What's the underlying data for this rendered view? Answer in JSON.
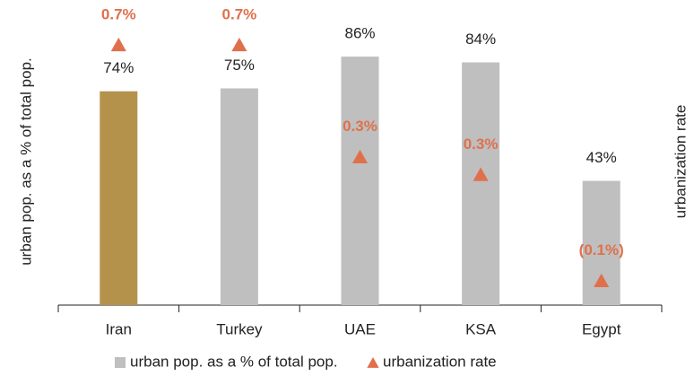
{
  "chart_data": {
    "type": "bar",
    "categories": [
      "Iran",
      "Turkey",
      "UAE",
      "KSA",
      "Egypt"
    ],
    "y_label": "urban pop. as a % of total pop.",
    "y2_label": "urbanization rate",
    "ylim": [
      0,
      100
    ],
    "y2lim": [
      -0.18,
      0.8
    ],
    "legend": "bottom",
    "series": [
      {
        "name": "urban pop. as a % of total pop.",
        "type": "bar",
        "color": "#bfbfbf",
        "colors": [
          "#b5924c",
          "#bfbfbf",
          "#bfbfbf",
          "#bfbfbf",
          "#bfbfbf"
        ],
        "values": [
          74,
          75,
          86,
          84,
          43
        ],
        "value_labels": [
          "74%",
          "75%",
          "86%",
          "84%",
          "43%"
        ]
      },
      {
        "name": "urbanization rate",
        "type": "scatter",
        "axis": "y2",
        "color": "#e0704c",
        "values": [
          0.7,
          0.7,
          0.32,
          0.26,
          -0.1
        ],
        "value_labels": [
          "0.7%",
          "0.7%",
          "0.3%",
          "0.3%",
          "(0.1%)"
        ]
      }
    ]
  }
}
